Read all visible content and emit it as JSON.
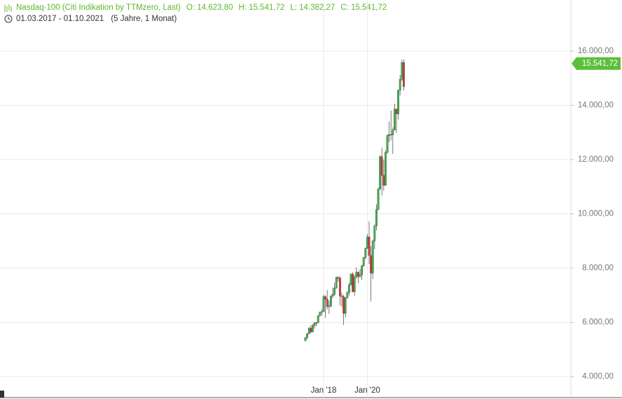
{
  "chart_data": {
    "type": "candlestick",
    "title": "Nasdaq-100 (Citi Indikation by TTMzero, Last)",
    "ohlc_labels": [
      "O: 14.623,80",
      "H: 15.541,72",
      "L: 14.382,27",
      "C: 15.541,72"
    ],
    "date_range": "01.03.2017 - 01.10.2021",
    "period": "(5 Jahre, 1 Monat)",
    "categories": [
      null,
      null,
      null,
      null,
      null,
      null,
      null,
      null,
      null,
      null,
      "Jan '18",
      null,
      null,
      null,
      null,
      null,
      null,
      null,
      null,
      null,
      null,
      null,
      null,
      null,
      null,
      null,
      null,
      null,
      null,
      null,
      null,
      null,
      null,
      null,
      "Jan '20",
      null,
      null,
      null,
      null,
      null,
      null,
      null,
      null,
      null,
      null,
      null,
      null,
      null,
      null,
      null,
      null,
      null,
      null,
      null,
      null
    ],
    "open": [
      5330,
      5436,
      5584,
      5788,
      5647,
      5880,
      5988,
      5980,
      6248,
      6374,
      6396,
      6950,
      6856,
      6581,
      6606,
      6968,
      7040,
      7272,
      7660,
      7628,
      6968,
      6949,
      6330,
      6907,
      7097,
      7378,
      7781,
      7128,
      7671,
      7848,
      7692,
      7750,
      8083,
      8398,
      8733,
      9150,
      8461,
      7813,
      9000,
      9555,
      10157,
      10905,
      12111,
      11418,
      11052,
      12268,
      12888,
      12925,
      12909,
      13091,
      13861,
      13687,
      14554,
      14959,
      15583
    ],
    "high": [
      5460,
      5610,
      5820,
      5900,
      5940,
      6000,
      6020,
      6260,
      6400,
      6480,
      7020,
      7000,
      7190,
      6800,
      6990,
      7280,
      7460,
      7690,
      7700,
      7700,
      7090,
      7020,
      6930,
      7150,
      7460,
      7790,
      7850,
      7760,
      8030,
      7880,
      7960,
      8120,
      8410,
      8760,
      9260,
      9720,
      8810,
      9050,
      9610,
      10350,
      10980,
      12160,
      12440,
      12000,
      12340,
      12930,
      13400,
      13810,
      13190,
      14060,
      13870,
      14590,
      15120,
      15680,
      15700
    ],
    "low": [
      5300,
      5380,
      5560,
      5590,
      5640,
      5770,
      5860,
      5970,
      6220,
      6250,
      6390,
      6160,
      6480,
      6320,
      6550,
      6900,
      6980,
      7240,
      7500,
      6620,
      6560,
      5900,
      6190,
      6880,
      6990,
      7370,
      7110,
      6980,
      7610,
      7450,
      7630,
      7560,
      8050,
      8320,
      8710,
      8150,
      6770,
      7600,
      8700,
      9390,
      10150,
      10900,
      10680,
      10860,
      11150,
      12210,
      12640,
      12700,
      12210,
      13070,
      12980,
      13480,
      14360,
      14900,
      14550
    ],
    "close": [
      5436,
      5584,
      5788,
      5647,
      5880,
      5988,
      5980,
      6248,
      6374,
      6396,
      6950,
      6856,
      6581,
      6606,
      6968,
      7040,
      7272,
      7660,
      7628,
      6968,
      6949,
      6330,
      6907,
      7097,
      7378,
      7781,
      7128,
      7671,
      7848,
      7692,
      7750,
      8083,
      8398,
      8733,
      9150,
      8461,
      7813,
      9000,
      9555,
      10157,
      10905,
      12111,
      11418,
      11052,
      12268,
      12888,
      12925,
      12909,
      13091,
      13861,
      13687,
      14554,
      14959,
      15583,
      14690
    ],
    "up_color": "#3cb44b",
    "down_color": "#e0312b",
    "last_price": {
      "value": 15541.72,
      "label": "15.541,72"
    },
    "last_color": "#5cbf3a",
    "ylim": [
      3226,
      17884
    ],
    "yticks": [
      {
        "value": 4000,
        "label": "4.000,00"
      },
      {
        "value": 6000,
        "label": "6.000,00"
      },
      {
        "value": 8000,
        "label": "8.000,00"
      },
      {
        "value": 10000,
        "label": "10.000,00"
      },
      {
        "value": 12000,
        "label": "12.000,00"
      },
      {
        "value": 14000,
        "label": "14.000,00"
      },
      {
        "value": 16000,
        "label": "16.000,00"
      }
    ],
    "grid": true
  }
}
